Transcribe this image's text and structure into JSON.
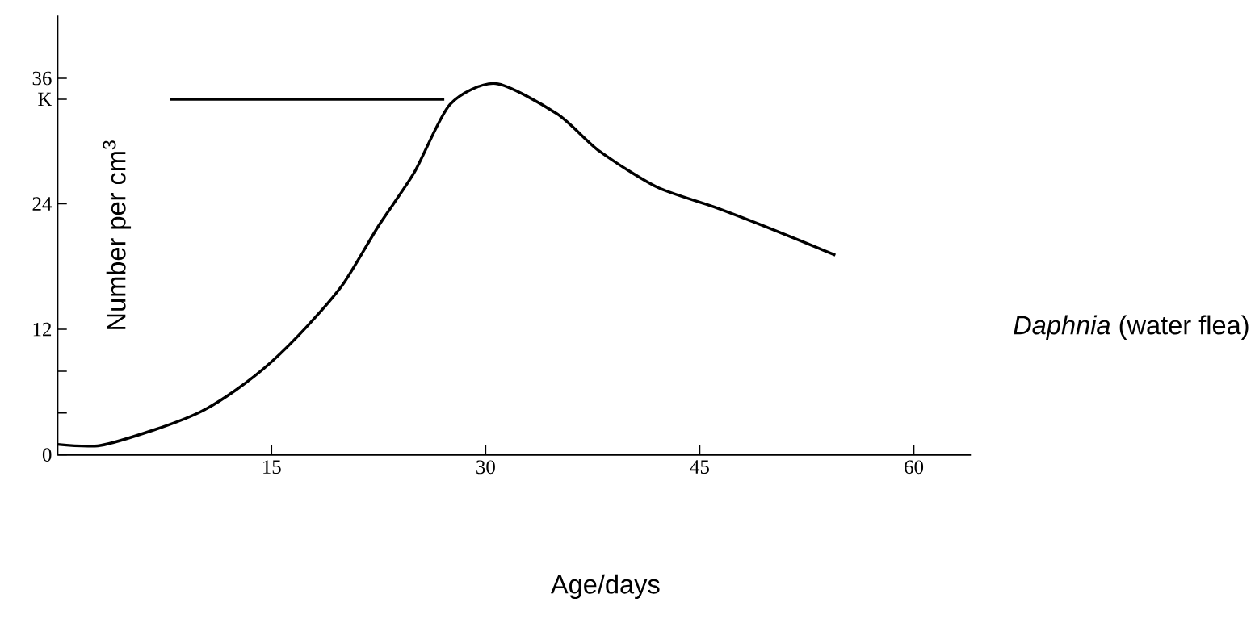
{
  "chart_data": {
    "type": "line",
    "xlabel": "Age/days",
    "ylabel": "Number per cm$^{3}$",
    "xlim": [
      0,
      64
    ],
    "ylim": [
      0,
      42
    ],
    "xticks": [
      15,
      30,
      45,
      60
    ],
    "yticks": [
      0,
      {
        "value": 4,
        "label": null
      },
      {
        "value": 8,
        "label": null
      },
      12,
      24,
      {
        "value": 34,
        "label": "K"
      },
      36
    ],
    "series": [
      {
        "name": "*Daphnia* (water flea)",
        "color": "#000000",
        "x": [
          0,
          3,
          6.8,
          10,
          12.5,
          15,
          17.5,
          20,
          22.5,
          25,
          27.5,
          30.7,
          35,
          38,
          42,
          46,
          50,
          54.5
        ],
        "values": [
          1,
          0.9,
          2.4,
          4.1,
          6.2,
          8.9,
          12.3,
          16.3,
          21.9,
          27,
          33.5,
          35.5,
          32.6,
          29,
          25.6,
          23.7,
          21.6,
          19.1
        ]
      },
      {
        "color": "#000000",
        "x": [
          7.9,
          27.1
        ],
        "values": [
          34,
          34
        ]
      }
    ]
  }
}
